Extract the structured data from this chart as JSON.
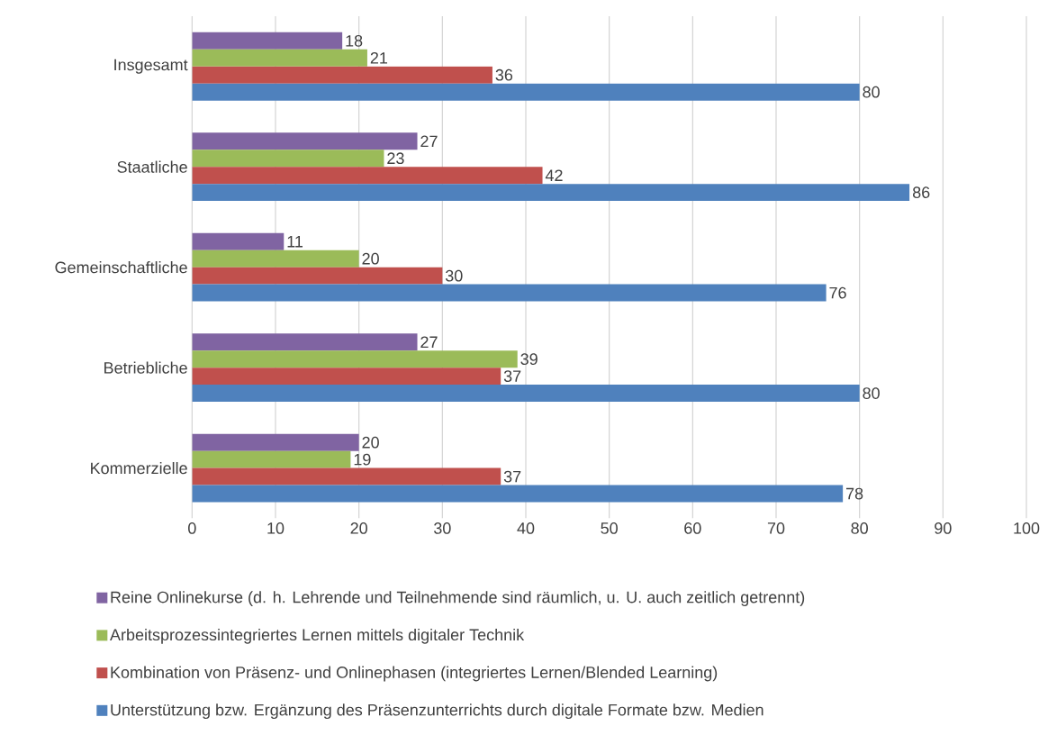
{
  "chart_data": {
    "type": "bar",
    "orientation": "horizontal",
    "categories": [
      "Insgesamt",
      "Staatliche",
      "Gemeinschaftliche",
      "Betriebliche",
      "Kommerzielle"
    ],
    "series": [
      {
        "name": "Reine Onlinekurse (d. h. Lehrende und Teilnehmende sind räumlich, u. U. auch zeitlich getrennt)",
        "color": "#8064a2",
        "values": [
          18,
          27,
          11,
          27,
          20
        ]
      },
      {
        "name": "Arbeitsprozessintegriertes Lernen mittels digitaler Technik",
        "color": "#9bbb59",
        "values": [
          21,
          23,
          20,
          39,
          19
        ]
      },
      {
        "name": "Kombination von Präsenz- und Onlinephasen (integriertes Lernen/Blended Learning)",
        "color": "#c0504d",
        "values": [
          36,
          42,
          30,
          37,
          37
        ]
      },
      {
        "name": "Unterstützung bzw. Ergänzung des Präsenzunterrichts durch digitale Formate bzw. Medien",
        "color": "#4f81bd",
        "values": [
          80,
          86,
          76,
          80,
          78
        ]
      }
    ],
    "xlim": [
      0,
      100
    ],
    "xticks": [
      0,
      10,
      20,
      30,
      40,
      50,
      60,
      70,
      80,
      90,
      100
    ],
    "grid": "x",
    "legend": "bottom",
    "data_labels": true
  }
}
